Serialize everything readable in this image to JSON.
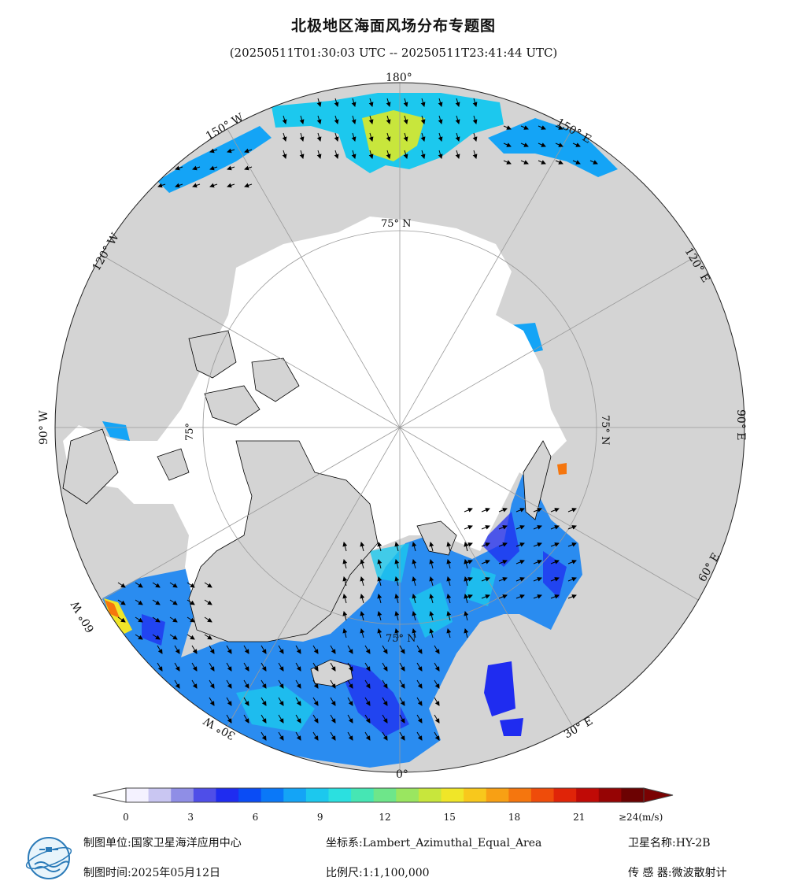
{
  "header": {
    "title": "北极地区海面风场分布专题图",
    "subtitle": "(20250511T01:30:03 UTC -- 20250511T23:41:44 UTC)"
  },
  "map": {
    "projection": "Lambert_Azimuthal_Equal_Area",
    "center": "North Pole",
    "longitude_labels": [
      {
        "text": "180°",
        "lon": 180
      },
      {
        "text": "150° E",
        "lon": 150
      },
      {
        "text": "120° E",
        "lon": 120
      },
      {
        "text": "90° E",
        "lon": 90
      },
      {
        "text": "60° E",
        "lon": 60
      },
      {
        "text": "30° E",
        "lon": 30
      },
      {
        "text": "0°",
        "lon": 0
      },
      {
        "text": "30° W",
        "lon": -30
      },
      {
        "text": "60° W",
        "lon": -60
      },
      {
        "text": "90° W",
        "lon": -90
      },
      {
        "text": "120° W",
        "lon": -120
      },
      {
        "text": "150° W",
        "lon": -150
      }
    ],
    "latitude_labels": [
      "75° N",
      "75° N",
      "75° N",
      "75°"
    ],
    "colors": {
      "land": "#d4d4d4",
      "ice": "#ffffff",
      "coast": "#000000",
      "grid": "#9a9a9a",
      "arrow": "#000000"
    }
  },
  "colorbar": {
    "ticks": [
      "0",
      "3",
      "6",
      "9",
      "12",
      "15",
      "18",
      "21"
    ],
    "max_label": "≥24(m/s)",
    "min": 0,
    "max": 24,
    "colors": [
      "#f4f2ff",
      "#c9c6f2",
      "#8f8ee6",
      "#4f4ee8",
      "#1f2cf0",
      "#0a4cf5",
      "#0a78f8",
      "#14a4f6",
      "#1cc8ee",
      "#2be0e0",
      "#46e6b4",
      "#6ee68a",
      "#9ae660",
      "#c8e63c",
      "#f0e628",
      "#f8c81c",
      "#f8a014",
      "#f5760e",
      "#ef4c0a",
      "#e02408",
      "#c00a06",
      "#960404",
      "#6c0202"
    ]
  },
  "footer": {
    "unit_label": "制图单位:",
    "unit_value": "国家卫星海洋应用中心",
    "coord_label": "坐标系:",
    "coord_value": "Lambert_Azimuthal_Equal_Area",
    "sat_label": "卫星名称:",
    "sat_value": "HY-2B",
    "time_label": "制图时间:",
    "time_value": "2025年05月12日",
    "scale_label": "比例尺:",
    "scale_value": "1:1,100,000",
    "sensor_label": "传 感 器:",
    "sensor_value": "微波散射计"
  }
}
